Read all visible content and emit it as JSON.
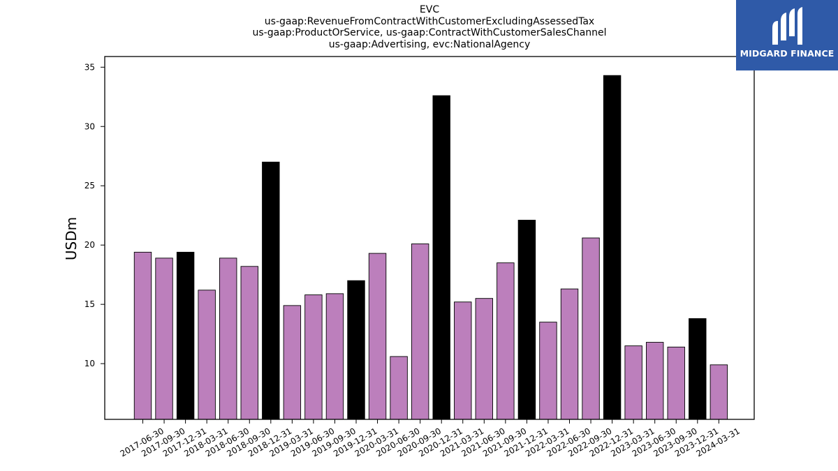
{
  "title_lines": [
    "EVC",
    "us-gaap:RevenueFromContractWithCustomerExcludingAssessedTax",
    "us-gaap:ProductOrService, us-gaap:ContractWithCustomerSalesChannel",
    "us-gaap:Advertising, evc:NationalAgency"
  ],
  "logo": {
    "text": "MIDGARD FINANCE",
    "color": "#2f5aa8"
  },
  "colors": {
    "quarter_bar": "#bc7fbc",
    "year_end_bar": "#000000",
    "bar_edge": "#000000"
  },
  "chart_data": {
    "type": "bar",
    "title": "EVC us-gaap:RevenueFromContractWithCustomerExcludingAssessedTax us-gaap:ProductOrService, us-gaap:ContractWithCustomerSalesChannel us-gaap:Advertising, evc:NationalAgency",
    "xlabel": "",
    "ylabel": "USDm",
    "ylim": [
      5.3,
      35.9
    ],
    "yticks": [
      10,
      15,
      20,
      25,
      30,
      35
    ],
    "grid": false,
    "categories": [
      "2017-06-30",
      "2017-09-30",
      "2017-12-31",
      "2018-03-31",
      "2018-06-30",
      "2018-09-30",
      "2018-12-31",
      "2019-03-31",
      "2019-06-30",
      "2019-09-30",
      "2019-12-31",
      "2020-03-31",
      "2020-06-30",
      "2020-09-30",
      "2020-12-31",
      "2021-03-31",
      "2021-06-30",
      "2021-09-30",
      "2021-12-31",
      "2022-03-31",
      "2022-06-30",
      "2022-09-30",
      "2022-12-31",
      "2023-03-31",
      "2023-06-30",
      "2023-09-30",
      "2023-12-31",
      "2024-03-31"
    ],
    "values": [
      19.4,
      18.9,
      19.4,
      16.2,
      18.9,
      18.2,
      27.0,
      14.9,
      15.8,
      15.9,
      17.0,
      19.3,
      10.6,
      20.1,
      32.6,
      15.2,
      15.5,
      18.5,
      22.1,
      13.5,
      16.3,
      20.6,
      34.3,
      11.5,
      11.8,
      11.4,
      13.8,
      9.9
    ],
    "highlight": [
      false,
      false,
      true,
      false,
      false,
      false,
      true,
      false,
      false,
      false,
      true,
      false,
      false,
      false,
      true,
      false,
      false,
      false,
      true,
      false,
      false,
      false,
      true,
      false,
      false,
      false,
      true,
      false
    ]
  }
}
